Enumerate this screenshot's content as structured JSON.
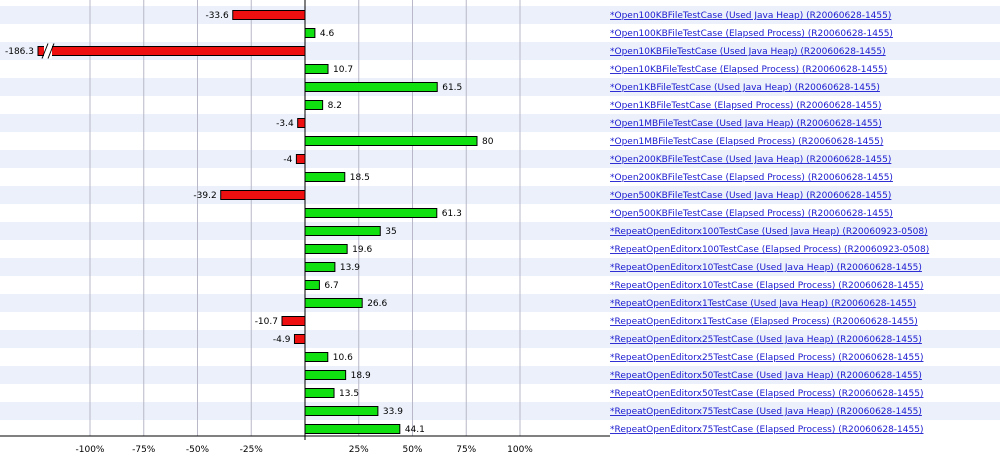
{
  "chart_data": {
    "type": "bar",
    "orientation": "horizontal",
    "xlim": [
      -125,
      125
    ],
    "x_ticks": [
      -100,
      -75,
      -50,
      -25,
      25,
      50,
      75,
      100
    ],
    "x_tick_labels": [
      "-100%",
      "-75%",
      "-50%",
      "-25%",
      "25%",
      "50%",
      "75%",
      "100%"
    ],
    "grid": true,
    "colors": {
      "positive": "#10e010",
      "negative": "#ee1010",
      "stripe": "#ebf0fa",
      "link": "#1a1ad0"
    },
    "categories": [
      "*Open100KBFileTestCase (Used Java Heap) (R20060628-1455)",
      "*Open100KBFileTestCase (Elapsed Process) (R20060628-1455)",
      "*Open10KBFileTestCase (Used Java Heap) (R20060628-1455)",
      "*Open10KBFileTestCase (Elapsed Process) (R20060628-1455)",
      "*Open1KBFileTestCase (Used Java Heap) (R20060628-1455)",
      "*Open1KBFileTestCase (Elapsed Process) (R20060628-1455)",
      "*Open1MBFileTestCase (Used Java Heap) (R20060628-1455)",
      "*Open1MBFileTestCase (Elapsed Process) (R20060628-1455)",
      "*Open200KBFileTestCase (Used Java Heap) (R20060628-1455)",
      "*Open200KBFileTestCase (Elapsed Process) (R20060628-1455)",
      "*Open500KBFileTestCase (Used Java Heap) (R20060628-1455)",
      "*Open500KBFileTestCase (Elapsed Process) (R20060628-1455)",
      "*RepeatOpenEditorx100TestCase (Used Java Heap) (R20060923-0508)",
      "*RepeatOpenEditorx100TestCase (Elapsed Process) (R20060923-0508)",
      "*RepeatOpenEditorx10TestCase (Used Java Heap) (R20060628-1455)",
      "*RepeatOpenEditorx10TestCase (Elapsed Process) (R20060628-1455)",
      "*RepeatOpenEditorx1TestCase (Used Java Heap) (R20060628-1455)",
      "*RepeatOpenEditorx1TestCase (Elapsed Process) (R20060628-1455)",
      "*RepeatOpenEditorx25TestCase (Used Java Heap) (R20060628-1455)",
      "*RepeatOpenEditorx25TestCase (Elapsed Process) (R20060628-1455)",
      "*RepeatOpenEditorx50TestCase (Used Java Heap) (R20060628-1455)",
      "*RepeatOpenEditorx50TestCase (Elapsed Process) (R20060628-1455)",
      "*RepeatOpenEditorx75TestCase (Used Java Heap) (R20060628-1455)",
      "*RepeatOpenEditorx75TestCase (Elapsed Process) (R20060628-1455)"
    ],
    "values": [
      -33.6,
      4.6,
      -186.3,
      10.7,
      61.5,
      8.2,
      -3.4,
      80,
      -4,
      18.5,
      -39.2,
      61.3,
      35,
      19.6,
      13.9,
      6.7,
      26.6,
      -10.7,
      -4.9,
      10.6,
      18.9,
      13.5,
      33.9,
      44.1
    ],
    "value_labels": [
      "-33.6",
      "4.6",
      "-186.3",
      "10.7",
      "61.5",
      "8.2",
      "-3.4",
      "80",
      "-4",
      "18.5",
      "-39.2",
      "61.3",
      "35",
      "19.6",
      "13.9",
      "6.7",
      "26.6",
      "-10.7",
      "-4.9",
      "10.6",
      "18.9",
      "13.5",
      "33.9",
      "44.1"
    ]
  }
}
